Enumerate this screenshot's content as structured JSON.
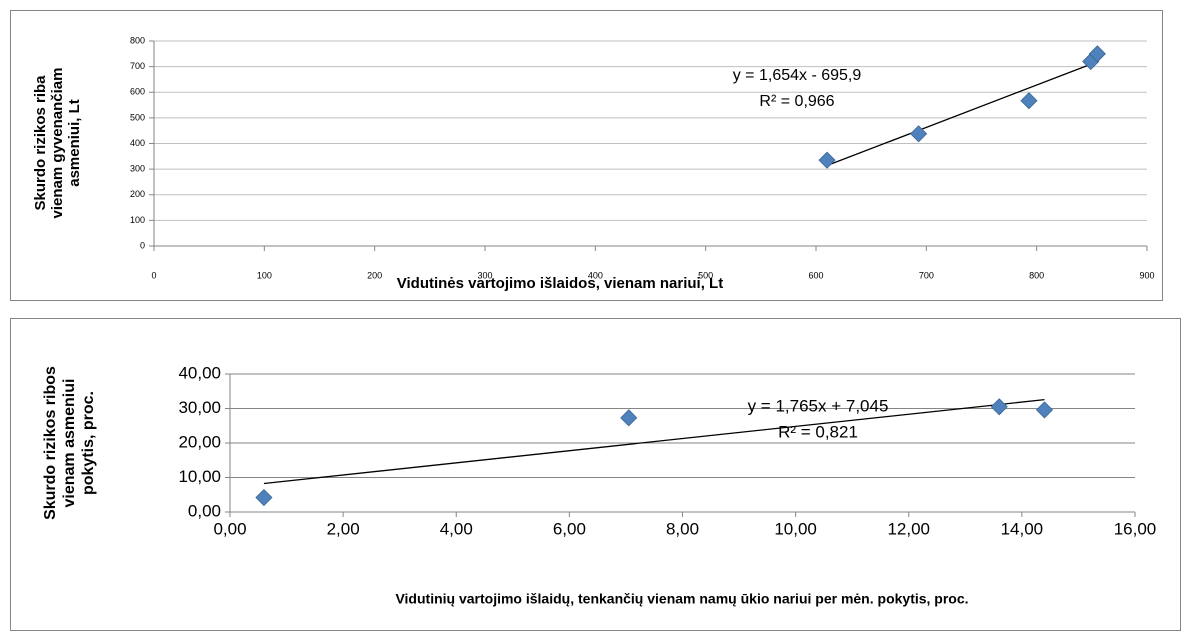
{
  "chart_data": [
    {
      "type": "scatter",
      "x_label": "Vidutinės vartojimo išlaidos, vienam nariui, Lt",
      "y_label_lines": [
        "Skurdo rizikos riba",
        "vienam gyvenančiam",
        "asmeniui, Lt"
      ],
      "x": [
        610,
        693,
        793,
        849,
        855
      ],
      "values": [
        335,
        438,
        567,
        720,
        750
      ],
      "color": "#4f81bd",
      "xlim": [
        0,
        900
      ],
      "xticks": [
        0,
        100,
        200,
        300,
        400,
        500,
        600,
        700,
        800,
        900
      ],
      "ylim": [
        0,
        800
      ],
      "yticks": [
        0,
        100,
        200,
        300,
        400,
        500,
        600,
        700,
        800
      ],
      "grid": true,
      "trendline": true,
      "annotations": [
        "y = 1,654x - 695,9",
        "R² = 0,966"
      ]
    },
    {
      "type": "scatter",
      "x_label": "Vidutinių vartojimo išlaidų, tenkančių vienam namų ūkio nariui per mėn.  pokytis, proc.",
      "y_label_lines": [
        "Skurdo rizikos ribos",
        "vienam asmeniui",
        "pokytis, proc."
      ],
      "x": [
        0.6,
        7.05,
        13.6,
        14.4
      ],
      "values": [
        4.2,
        27.3,
        30.5,
        29.6
      ],
      "color": "#4f81bd",
      "xlim": [
        0,
        16
      ],
      "xticks": [
        {
          "value": 0,
          "label": "0,00"
        },
        {
          "value": 2,
          "label": "2,00"
        },
        {
          "value": 4,
          "label": "4,00"
        },
        {
          "value": 6,
          "label": "6,00"
        },
        {
          "value": 8,
          "label": "8,00"
        },
        {
          "value": 10,
          "label": "10,00"
        },
        {
          "value": 12,
          "label": "12,00"
        },
        {
          "value": 14,
          "label": "14,00"
        },
        {
          "value": 16,
          "label": "16,00"
        }
      ],
      "ylim": [
        0,
        40
      ],
      "yticks": [
        {
          "value": 0,
          "label": "0,00"
        },
        {
          "value": 10,
          "label": "10,00"
        },
        {
          "value": 20,
          "label": "20,00"
        },
        {
          "value": 30,
          "label": "30,00"
        },
        {
          "value": 40,
          "label": "40,00"
        }
      ],
      "grid": true,
      "trendline": true,
      "annotations": [
        "y = 1,765x + 7,045",
        "R² = 0,821"
      ]
    }
  ]
}
